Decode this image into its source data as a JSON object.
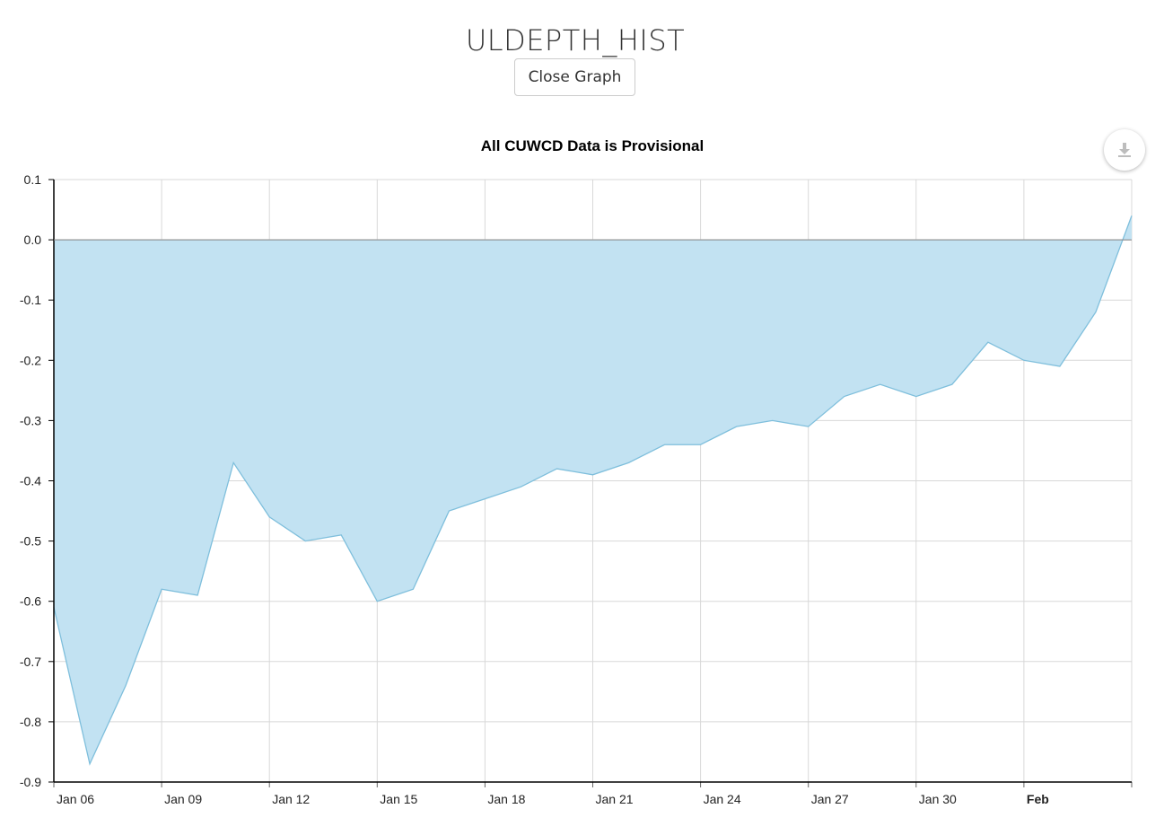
{
  "header": {
    "title": "ULDEPTH_HIST",
    "close_label": "Close Graph"
  },
  "icons": {
    "download": "download-icon"
  },
  "colors": {
    "fill": "#c2e2f2",
    "line": "#7fbfdc",
    "grid": "#d8d8d8"
  },
  "chart_data": {
    "type": "area",
    "title": "All CUWCD Data is Provisional",
    "xlabel": "",
    "ylabel": "",
    "ylim": [
      -0.9,
      0.1
    ],
    "yticks": [
      "0.1",
      "0.0",
      "-0.1",
      "-0.2",
      "-0.3",
      "-0.4",
      "-0.5",
      "-0.6",
      "-0.7",
      "-0.8",
      "-0.9"
    ],
    "xlim": [
      "2020-01-06",
      "2020-02-05"
    ],
    "xticks": [
      {
        "label": "Jan 06",
        "date": "2020-01-06"
      },
      {
        "label": "Jan 09",
        "date": "2020-01-09"
      },
      {
        "label": "Jan 12",
        "date": "2020-01-12"
      },
      {
        "label": "Jan 15",
        "date": "2020-01-15"
      },
      {
        "label": "Jan 18",
        "date": "2020-01-18"
      },
      {
        "label": "Jan 21",
        "date": "2020-01-21"
      },
      {
        "label": "Jan 24",
        "date": "2020-01-24"
      },
      {
        "label": "Jan 27",
        "date": "2020-01-27"
      },
      {
        "label": "Jan 30",
        "date": "2020-01-30"
      },
      {
        "label": "Feb",
        "date": "2020-02-02",
        "bold": true
      }
    ],
    "grid": true,
    "x": [
      "2020-01-06",
      "2020-01-07",
      "2020-01-08",
      "2020-01-09",
      "2020-01-10",
      "2020-01-11",
      "2020-01-12",
      "2020-01-13",
      "2020-01-14",
      "2020-01-15",
      "2020-01-16",
      "2020-01-17",
      "2020-01-18",
      "2020-01-19",
      "2020-01-20",
      "2020-01-21",
      "2020-01-22",
      "2020-01-23",
      "2020-01-24",
      "2020-01-25",
      "2020-01-26",
      "2020-01-27",
      "2020-01-28",
      "2020-01-29",
      "2020-01-30",
      "2020-01-31",
      "2020-02-01",
      "2020-02-02",
      "2020-02-03",
      "2020-02-04",
      "2020-02-05"
    ],
    "series": [
      {
        "values": [
          -0.61,
          -0.87,
          -0.74,
          -0.58,
          -0.59,
          -0.37,
          -0.46,
          -0.5,
          -0.49,
          -0.6,
          -0.58,
          -0.45,
          -0.43,
          -0.41,
          -0.38,
          -0.39,
          -0.37,
          -0.34,
          -0.34,
          -0.31,
          -0.3,
          -0.31,
          -0.26,
          -0.24,
          -0.26,
          -0.24,
          -0.17,
          -0.2,
          -0.21,
          -0.12,
          0.04
        ]
      }
    ]
  }
}
